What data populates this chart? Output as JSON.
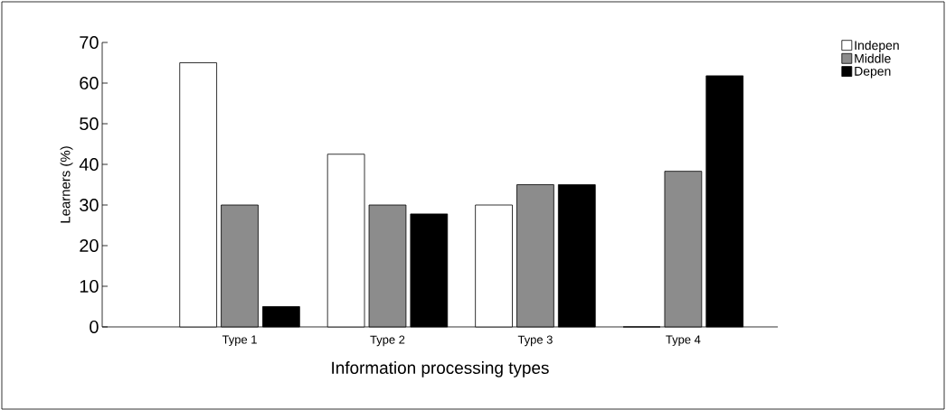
{
  "chart_data": {
    "type": "bar",
    "xlabel": "Information processing types",
    "ylabel": "Learners (%)",
    "categories": [
      "Type 1",
      "Type 2",
      "Type 3",
      "Type 4"
    ],
    "series": [
      {
        "name": "Indepen",
        "color": "#ffffff",
        "values": [
          65,
          42.5,
          30,
          0
        ]
      },
      {
        "name": "Middle",
        "color": "#8c8c8c",
        "values": [
          30,
          30,
          35,
          38.3
        ]
      },
      {
        "name": "Depen",
        "color": "#000000",
        "values": [
          5,
          27.8,
          35,
          61.8
        ]
      }
    ],
    "ylim": [
      0,
      70
    ],
    "yticks": [
      0,
      10,
      20,
      30,
      40,
      50,
      60,
      70
    ],
    "legend": "top right",
    "grid": false
  }
}
